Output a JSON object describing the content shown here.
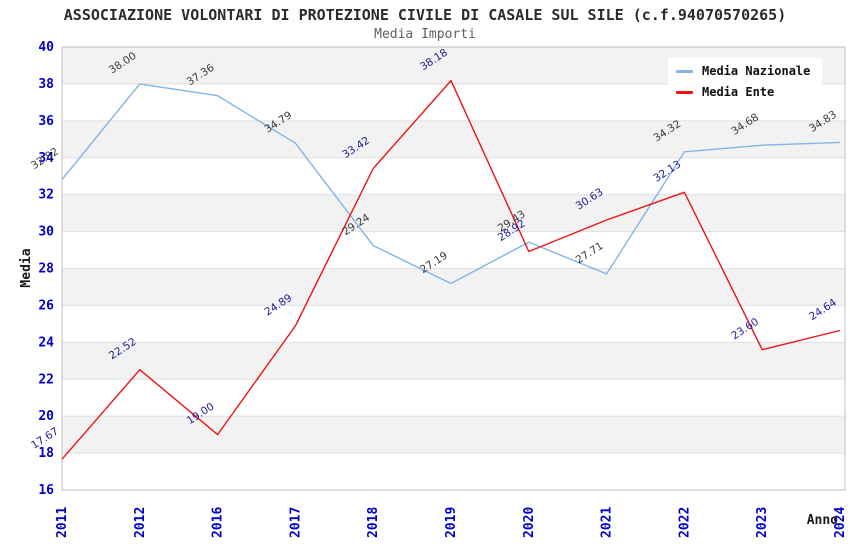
{
  "header": {
    "title": "ASSOCIAZIONE VOLONTARI DI PROTEZIONE CIVILE DI CASALE SUL SILE (c.f.94070570265)",
    "subtitle": "Media Importi"
  },
  "chart_data": {
    "type": "line",
    "title": "ASSOCIAZIONE VOLONTARI DI PROTEZIONE CIVILE DI CASALE SUL SILE (c.f.94070570265)",
    "subtitle": "Media Importi",
    "categories": [
      "2011",
      "2012",
      "2016",
      "2017",
      "2018",
      "2019",
      "2020",
      "2021",
      "2022",
      "2023",
      "2024"
    ],
    "series": [
      {
        "name": "Media Nazionale",
        "color": "#82b4e8",
        "label_color": "#3b3b3b",
        "values": [
          32.82,
          38.0,
          37.36,
          34.79,
          29.24,
          27.19,
          29.43,
          27.71,
          34.32,
          34.68,
          34.83
        ]
      },
      {
        "name": "Media Ente",
        "color": "#ee1313",
        "label_color": "#20209a",
        "values": [
          17.67,
          22.52,
          19.0,
          24.89,
          33.42,
          38.18,
          28.92,
          30.63,
          32.13,
          23.6,
          24.64
        ]
      }
    ],
    "xlabel": "Anno",
    "ylabel": "Media",
    "ylim": [
      16,
      40
    ],
    "ytick_step": 2,
    "grid": true,
    "legend_position": "top-right",
    "colors": {
      "tick_label": "#0000cc",
      "axis_title": "#1a1a1a",
      "band_light": "#ffffff",
      "band_dark": "#f2f2f2",
      "gridline": "#e0e0e0",
      "plot_border": "#c0c0c0"
    }
  }
}
